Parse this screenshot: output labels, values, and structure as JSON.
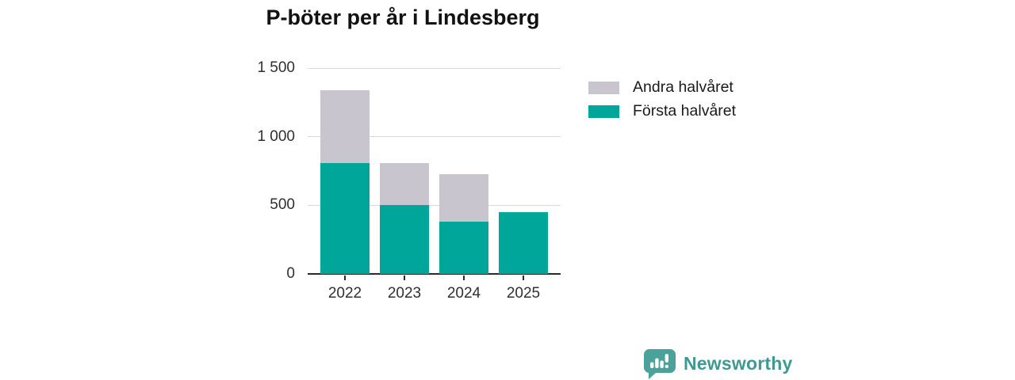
{
  "title": "P-böter per år i Lindesberg",
  "chart_data": {
    "type": "bar",
    "stacked": true,
    "categories": [
      "2022",
      "2023",
      "2024",
      "2025"
    ],
    "series": [
      {
        "name": "Första halvåret",
        "color": "#00a69a",
        "values": [
          805,
          500,
          380,
          450
        ]
      },
      {
        "name": "Andra halvåret",
        "color": "#c8c5ce",
        "values": [
          535,
          305,
          345,
          0
        ]
      }
    ],
    "title": "P-böter per år i Lindesberg",
    "xlabel": "",
    "ylabel": "",
    "ylim": [
      0,
      1500
    ],
    "yticks": [
      {
        "value": 0,
        "label": "0"
      },
      {
        "value": 500,
        "label": "500"
      },
      {
        "value": 1000,
        "label": "1 000"
      },
      {
        "value": 1500,
        "label": "1 500"
      }
    ],
    "grid": "horizontal",
    "legend_position": "right-top"
  },
  "legend": {
    "items": [
      {
        "label": "Andra halvåret",
        "color": "#c8c5ce"
      },
      {
        "label": "Första halvåret",
        "color": "#00a69a"
      }
    ]
  },
  "footer": {
    "brand": "Newsworthy",
    "brand_color": "#3d9a93",
    "logo_icon": "bar-chart-speech-bubble"
  }
}
